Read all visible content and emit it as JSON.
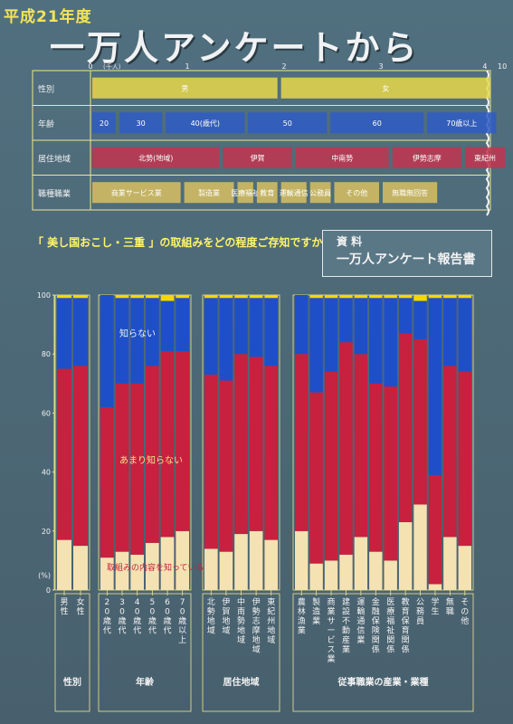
{
  "poster": {
    "tag": "平成21年度",
    "title": "一万人アンケートから",
    "question": "「 美し国おこし・三重 」の取組みをどの程度ご存知ですか",
    "doc_label": "資 料",
    "doc_name": "一万人アンケート報告書"
  },
  "colors": {
    "background": "#4d6a79",
    "know": "#f4e2b2",
    "little": "#c8203f",
    "dont_know": "#1f4fc8",
    "na": "#f4d800"
  },
  "sample_table": {
    "scale_unit": "(千人)",
    "scale_ticks": [
      "0",
      "1",
      "2",
      "3"
    ],
    "scale_end": "10",
    "scale_end_marker": "4",
    "rows": [
      {
        "label": "性別",
        "segments": [
          {
            "text": "男",
            "width": 1.95,
            "color": "#e8d84a"
          },
          {
            "text": "女",
            "width": 2.2,
            "color": "#e8d84a"
          }
        ]
      },
      {
        "label": "年齢",
        "segments": [
          {
            "text": "20",
            "width": 0.28,
            "color": "#2e5cc6"
          },
          {
            "text": "30",
            "width": 0.48,
            "color": "#2e5cc6"
          },
          {
            "text": "40(歳代)",
            "width": 0.85,
            "color": "#2e5cc6"
          },
          {
            "text": "50",
            "width": 0.85,
            "color": "#2e5cc6"
          },
          {
            "text": "60",
            "width": 1.0,
            "color": "#2e5cc6"
          },
          {
            "text": "70歳以上",
            "width": 0.75,
            "color": "#2e5cc6"
          }
        ]
      },
      {
        "label": "居住地域",
        "segments": [
          {
            "text": "北勢(地域)",
            "width": 1.35,
            "color": "#c2344f"
          },
          {
            "text": "伊賀",
            "width": 0.75,
            "color": "#c2344f"
          },
          {
            "text": "中南勢",
            "width": 1.0,
            "color": "#c2344f"
          },
          {
            "text": "伊勢志摩",
            "width": 0.75,
            "color": "#c2344f"
          },
          {
            "text": "東紀州",
            "width": 0.45,
            "color": "#c2344f"
          }
        ]
      },
      {
        "label": "職種職業",
        "segments": [
          {
            "text": "商業サービス業",
            "width": 0.95,
            "color": "#d8c060"
          },
          {
            "text": "製造業",
            "width": 0.55,
            "color": "#d8c060"
          },
          {
            "text": "医療福祉",
            "width": 0.2,
            "color": "#d8c060"
          },
          {
            "text": "教育",
            "width": 0.25,
            "color": "#d8c060"
          },
          {
            "text": "運輸通信",
            "width": 0.3,
            "color": "#d8c060"
          },
          {
            "text": "公務員",
            "width": 0.25,
            "color": "#d8c060"
          },
          {
            "text": "その他",
            "width": 0.5,
            "color": "#d8c060"
          },
          {
            "text": "無職無回答",
            "width": 0.6,
            "color": "#d8c060"
          }
        ]
      }
    ]
  },
  "chart_data": {
    "type": "bar",
    "stacked": true,
    "ylabel": "(%)",
    "ylim": [
      0,
      100
    ],
    "yticks": [
      "0",
      "20",
      "40",
      "60",
      "80",
      "100"
    ],
    "series_names": [
      "取組みの内容を知っている",
      "あまり知らない",
      "知らない"
    ],
    "groups": [
      {
        "name": "性別",
        "categories": [
          "男性",
          "女性"
        ]
      },
      {
        "name": "年齢",
        "categories": [
          "20歳代",
          "30歳代",
          "40歳代",
          "50歳代",
          "60歳代",
          "70歳以上"
        ]
      },
      {
        "name": "居住地域",
        "categories": [
          "北勢地域",
          "伊賀地域",
          "中南勢地域",
          "伊勢志摩地域",
          "東紀州地域"
        ]
      },
      {
        "name": "従事職業の産業・業種",
        "categories": [
          "農林漁業",
          "製造業",
          "商業サービス業",
          "建設不動産業",
          "運輸通信業",
          "金融保険関係",
          "医療福祉関係",
          "教育保育関係",
          "公務員",
          "学生",
          "無職",
          "その他"
        ]
      }
    ],
    "bars": [
      {
        "know": 17,
        "little": 58,
        "dont": 24
      },
      {
        "know": 15,
        "little": 61,
        "dont": 23
      },
      {
        "know": 11,
        "little": 51,
        "dont": 38
      },
      {
        "know": 13,
        "little": 57,
        "dont": 29
      },
      {
        "know": 12,
        "little": 58,
        "dont": 29
      },
      {
        "know": 16,
        "little": 60,
        "dont": 23
      },
      {
        "know": 18,
        "little": 63,
        "dont": 17
      },
      {
        "know": 20,
        "little": 61,
        "dont": 18
      },
      {
        "know": 14,
        "little": 59,
        "dont": 26
      },
      {
        "know": 13,
        "little": 58,
        "dont": 28
      },
      {
        "know": 19,
        "little": 61,
        "dont": 19
      },
      {
        "know": 20,
        "little": 59,
        "dont": 20
      },
      {
        "know": 17,
        "little": 59,
        "dont": 23
      },
      {
        "know": 20,
        "little": 60,
        "dont": 20
      },
      {
        "know": 9,
        "little": 58,
        "dont": 32
      },
      {
        "know": 10,
        "little": 64,
        "dont": 25
      },
      {
        "know": 12,
        "little": 72,
        "dont": 15
      },
      {
        "know": 18,
        "little": 62,
        "dont": 19
      },
      {
        "know": 13,
        "little": 57,
        "dont": 29
      },
      {
        "know": 10,
        "little": 59,
        "dont": 30
      },
      {
        "know": 23,
        "little": 64,
        "dont": 12
      },
      {
        "know": 29,
        "little": 56,
        "dont": 13
      },
      {
        "know": 2,
        "little": 37,
        "dont": 60
      },
      {
        "know": 18,
        "little": 58,
        "dont": 23
      },
      {
        "know": 15,
        "little": 59,
        "dont": 25
      }
    ],
    "annotations": [
      {
        "text": "知らない",
        "series": "dont_know"
      },
      {
        "text": "あまり知らない",
        "series": "little"
      },
      {
        "text": "取組みの内容を知っている",
        "series": "know"
      }
    ]
  }
}
